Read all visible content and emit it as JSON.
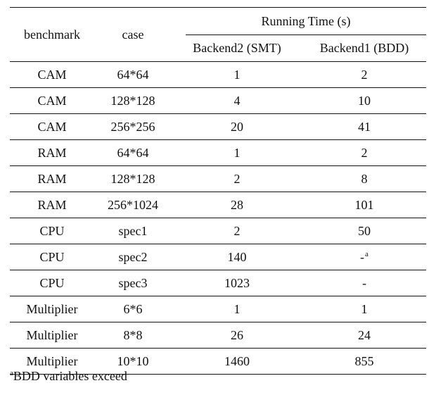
{
  "table": {
    "headers": {
      "benchmark": "benchmark",
      "case": "case",
      "group": "Running Time (s)",
      "smt": "Backend2 (SMT)",
      "bdd": "Backend1 (BDD)"
    },
    "rows": [
      {
        "benchmark": "CAM",
        "case": "64*64",
        "smt": "1",
        "bdd": "2",
        "bdd_note": ""
      },
      {
        "benchmark": "CAM",
        "case": "128*128",
        "smt": "4",
        "bdd": "10",
        "bdd_note": ""
      },
      {
        "benchmark": "CAM",
        "case": "256*256",
        "smt": "20",
        "bdd": "41",
        "bdd_note": ""
      },
      {
        "benchmark": "RAM",
        "case": "64*64",
        "smt": "1",
        "bdd": "2",
        "bdd_note": ""
      },
      {
        "benchmark": "RAM",
        "case": "128*128",
        "smt": "2",
        "bdd": "8",
        "bdd_note": ""
      },
      {
        "benchmark": "RAM",
        "case": "256*1024",
        "smt": "28",
        "bdd": "101",
        "bdd_note": ""
      },
      {
        "benchmark": "CPU",
        "case": "spec1",
        "smt": "2",
        "bdd": "50",
        "bdd_note": ""
      },
      {
        "benchmark": "CPU",
        "case": "spec2",
        "smt": "140",
        "bdd": "-",
        "bdd_note": "a"
      },
      {
        "benchmark": "CPU",
        "case": "spec3",
        "smt": "1023",
        "bdd": "-",
        "bdd_note": ""
      },
      {
        "benchmark": "Multiplier",
        "case": "6*6",
        "smt": "1",
        "bdd": "1",
        "bdd_note": ""
      },
      {
        "benchmark": "Multiplier",
        "case": "8*8",
        "smt": "26",
        "bdd": "24",
        "bdd_note": ""
      },
      {
        "benchmark": "Multiplier",
        "case": "10*10",
        "smt": "1460",
        "bdd": "855",
        "bdd_note": ""
      }
    ],
    "footnote": {
      "marker": "a",
      "text": "BDD variables exceed"
    }
  }
}
